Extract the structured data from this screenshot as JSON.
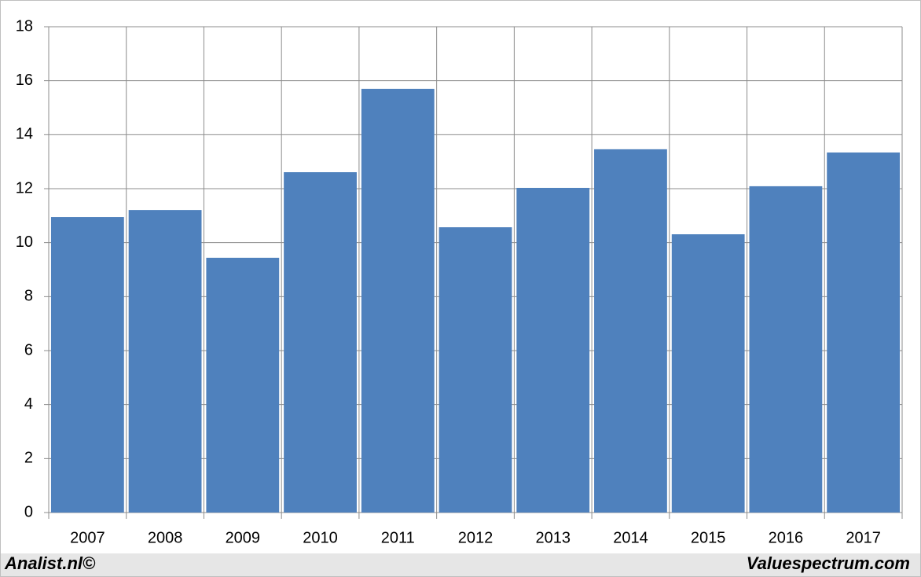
{
  "chart_data": {
    "type": "bar",
    "categories": [
      "2007",
      "2008",
      "2009",
      "2010",
      "2011",
      "2012",
      "2013",
      "2014",
      "2015",
      "2016",
      "2017"
    ],
    "values": [
      10.95,
      11.21,
      9.44,
      12.61,
      15.7,
      10.57,
      12.03,
      13.46,
      10.31,
      12.09,
      13.34
    ],
    "color": "#4f81bd",
    "ylim": [
      0,
      18
    ],
    "yticks": [
      0,
      2,
      4,
      6,
      8,
      10,
      12,
      14,
      16,
      18
    ],
    "grid": true
  },
  "footer": {
    "left": "Analist.nl©",
    "right": "Valuespectrum.com"
  }
}
